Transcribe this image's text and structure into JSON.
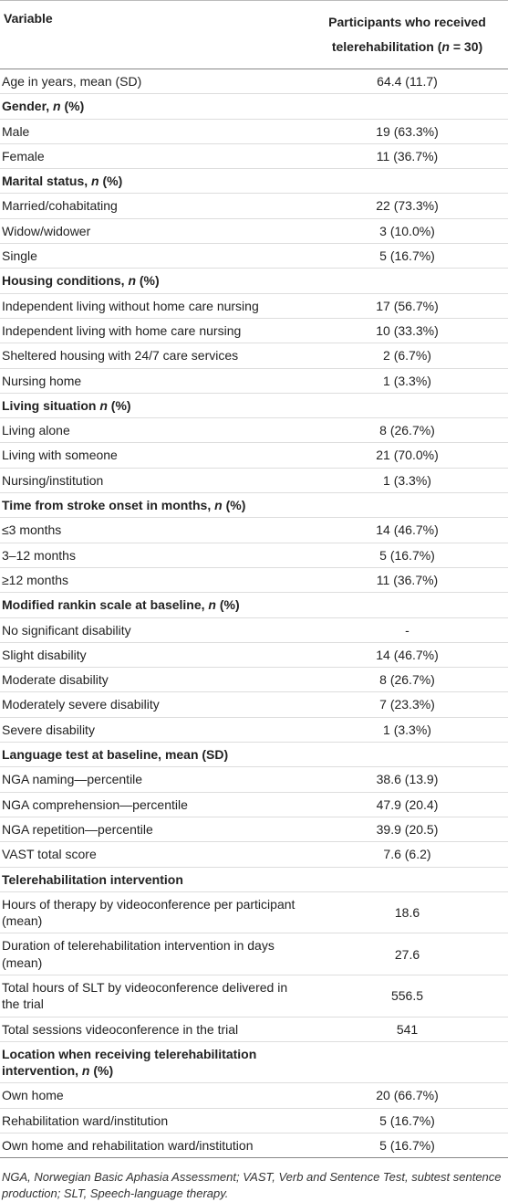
{
  "table": {
    "header": {
      "variable": "Variable",
      "participants": [
        "Participants who received telerehabilitation (",
        "n",
        " = 30)"
      ]
    },
    "rows": [
      {
        "label": "Age in years, mean (SD)",
        "value": "64.4 (11.7)"
      },
      {
        "label": [
          "Gender, ",
          "n",
          " (%)"
        ],
        "section": true
      },
      {
        "label": "Male",
        "value": "19 (63.3%)"
      },
      {
        "label": "Female",
        "value": "11 (36.7%)"
      },
      {
        "label": [
          "Marital status, ",
          "n",
          " (%)"
        ],
        "section": true
      },
      {
        "label": "Married/cohabitating",
        "value": "22 (73.3%)"
      },
      {
        "label": "Widow/widower",
        "value": "3 (10.0%)"
      },
      {
        "label": "Single",
        "value": "5 (16.7%)"
      },
      {
        "label": [
          "Housing conditions, ",
          "n",
          " (%)"
        ],
        "section": true
      },
      {
        "label": "Independent living without home care nursing",
        "value": "17 (56.7%)"
      },
      {
        "label": "Independent living with home care nursing",
        "value": "10 (33.3%)"
      },
      {
        "label": "Sheltered housing with 24/7 care services",
        "value": "2 (6.7%)"
      },
      {
        "label": "Nursing home",
        "value": "1 (3.3%)"
      },
      {
        "label": [
          "Living situation ",
          "n",
          " (%)"
        ],
        "section": true
      },
      {
        "label": "Living alone",
        "value": "8 (26.7%)"
      },
      {
        "label": "Living with someone",
        "value": "21 (70.0%)"
      },
      {
        "label": "Nursing/institution",
        "value": "1 (3.3%)"
      },
      {
        "label": [
          "Time from stroke onset in months, ",
          "n",
          " (%)"
        ],
        "section": true
      },
      {
        "label": "≤3 months",
        "value": "14 (46.7%)"
      },
      {
        "label": "3–12 months",
        "value": "5 (16.7%)"
      },
      {
        "label": "≥12 months",
        "value": "11 (36.7%)"
      },
      {
        "label": [
          "Modified rankin scale at baseline, ",
          "n",
          " (%)"
        ],
        "section": true
      },
      {
        "label": "No significant disability",
        "value": "-"
      },
      {
        "label": "Slight disability",
        "value": "14 (46.7%)"
      },
      {
        "label": "Moderate disability",
        "value": "8 (26.7%)"
      },
      {
        "label": "Moderately severe disability",
        "value": "7 (23.3%)"
      },
      {
        "label": "Severe disability",
        "value": "1 (3.3%)"
      },
      {
        "label": [
          "Language test at baseline, mean (SD)"
        ],
        "section": true
      },
      {
        "label": "NGA naming—percentile",
        "value": "38.6 (13.9)"
      },
      {
        "label": "NGA comprehension—percentile",
        "value": "47.9 (20.4)"
      },
      {
        "label": "NGA repetition—percentile",
        "value": "39.9 (20.5)"
      },
      {
        "label": "VAST total score",
        "value": "7.6 (6.2)"
      },
      {
        "label": [
          "Telerehabilitation intervention"
        ],
        "section": true
      },
      {
        "label": "Hours of therapy by videoconference per participant (mean)",
        "value": "18.6"
      },
      {
        "label": "Duration of telerehabilitation intervention in days (mean)",
        "value": "27.6"
      },
      {
        "label": "Total hours of SLT by videoconference delivered in the trial",
        "value": "556.5"
      },
      {
        "label": "Total sessions videoconference in the trial",
        "value": "541"
      },
      {
        "label": [
          "Location when receiving telerehabilitation intervention, ",
          "n",
          " (%)"
        ],
        "section": true
      },
      {
        "label": "Own home",
        "value": "20 (66.7%)"
      },
      {
        "label": "Rehabilitation ward/institution",
        "value": "5 (16.7%)"
      },
      {
        "label": "Own home and rehabilitation ward/institution",
        "value": "5 (16.7%)"
      }
    ]
  },
  "footnote": "NGA, Norwegian Basic Aphasia Assessment; VAST, Verb and Sentence Test, subtest sentence production; SLT, Speech-language therapy."
}
